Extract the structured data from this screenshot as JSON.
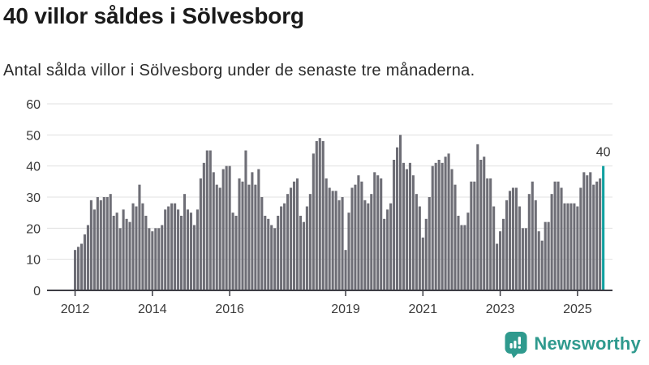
{
  "title": "40 villor såldes i Sölvesborg",
  "subtitle": "Antal sålda villor i Sölvesborg under de senaste tre månaderna.",
  "annotation": {
    "last_value_label": "40"
  },
  "footer": {
    "brand": "Newsworthy",
    "logo_icon": "newsworthy-speech-bubble-bar-chart-icon"
  },
  "colors": {
    "bar": "#6e6e76",
    "highlight": "#12a0a0",
    "grid": "#e0e0e0",
    "axis": "#3d3d44",
    "brand": "#2f9a8e",
    "title_text": "#1a1a1a",
    "body_text": "#2b2b2b",
    "tick_text": "#3a3a3a"
  },
  "chart_data": {
    "type": "bar",
    "frequency": "monthly",
    "x_start": "2012-01",
    "x_end": "2025-09",
    "title": "40 villor såldes i Sölvesborg",
    "subtitle": "Antal sålda villor i Sölvesborg under de senaste tre månaderna.",
    "xlabel": "",
    "ylabel": "",
    "ylim": [
      0,
      60
    ],
    "yticks": [
      0,
      10,
      20,
      30,
      40,
      50,
      60
    ],
    "grid": true,
    "legend": false,
    "highlight_last": true,
    "last_value_label": "40",
    "xticks": [
      {
        "label": "2012",
        "month": 0
      },
      {
        "label": "2014",
        "month": 24
      },
      {
        "label": "2016",
        "month": 48
      },
      {
        "label": "2019",
        "month": 84
      },
      {
        "label": "2021",
        "month": 108
      },
      {
        "label": "2023",
        "month": 132
      },
      {
        "label": "2025",
        "month": 156
      }
    ],
    "values": [
      13,
      14,
      15,
      18,
      21,
      29,
      26,
      30,
      29,
      30,
      30,
      31,
      24,
      25,
      20,
      26,
      23,
      22,
      28,
      27,
      34,
      28,
      24,
      20,
      19,
      20,
      20,
      21,
      26,
      27,
      28,
      28,
      26,
      24,
      31,
      26,
      25,
      21,
      26,
      36,
      41,
      45,
      45,
      38,
      34,
      33,
      39,
      40,
      40,
      25,
      24,
      36,
      35,
      45,
      34,
      38,
      34,
      39,
      30,
      24,
      23,
      21,
      20,
      24,
      27,
      28,
      31,
      33,
      35,
      36,
      24,
      22,
      27,
      31,
      44,
      48,
      49,
      48,
      36,
      33,
      32,
      32,
      29,
      30,
      13,
      25,
      33,
      34,
      37,
      35,
      29,
      28,
      31,
      38,
      37,
      36,
      23,
      26,
      28,
      42,
      46,
      50,
      41,
      39,
      41,
      37,
      31,
      27,
      17,
      23,
      30,
      40,
      41,
      42,
      41,
      43,
      44,
      39,
      34,
      24,
      21,
      21,
      25,
      35,
      35,
      47,
      42,
      43,
      36,
      36,
      27,
      15,
      19,
      23,
      29,
      32,
      33,
      33,
      27,
      20,
      20,
      31,
      35,
      29,
      19,
      16,
      22,
      22,
      31,
      35,
      35,
      33,
      28,
      28,
      28,
      28,
      27,
      33,
      38,
      37,
      38,
      34,
      35,
      36,
      40
    ]
  }
}
